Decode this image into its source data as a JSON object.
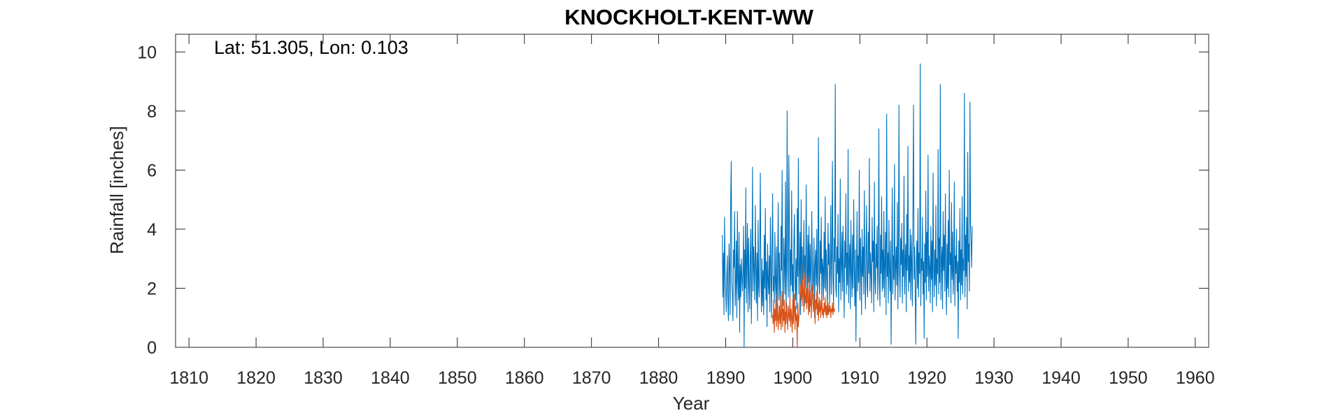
{
  "chart_data": {
    "type": "line",
    "title": "KNOCKHOLT-KENT-WW",
    "xlabel": "Year",
    "ylabel": "Rainfall [inches]",
    "annotation": "Lat: 51.305, Lon: 0.103",
    "xlim": [
      1808,
      1962
    ],
    "ylim": [
      0,
      10.6
    ],
    "xticks": [
      1810,
      1820,
      1830,
      1840,
      1850,
      1860,
      1870,
      1880,
      1890,
      1900,
      1910,
      1920,
      1930,
      1940,
      1950,
      1960
    ],
    "yticks": [
      0,
      2,
      4,
      6,
      8,
      10
    ],
    "grid": false,
    "series": [
      {
        "color": "#0072BD",
        "x_start": 1889.5,
        "step": 0.0833333,
        "values": [
          3.8,
          1.7,
          3.2,
          1.1,
          4.4,
          2.6,
          1.9,
          1.2,
          2.4,
          3.1,
          1.5,
          0.9,
          3.5,
          2.8,
          1.1,
          5.1,
          6.3,
          2.2,
          1.8,
          0.9,
          3.3,
          2.7,
          4.6,
          1.4,
          2.1,
          3.6,
          1.0,
          4.6,
          2.3,
          1.6,
          3.9,
          0.5,
          2.8,
          1.7,
          3.0,
          2.4,
          1.9,
          2.6,
          4.1,
          0.0,
          3.3,
          2.0,
          5.4,
          1.5,
          2.9,
          4.2,
          1.2,
          3.7,
          2.2,
          1.3,
          3.1,
          4.0,
          0.8,
          2.5,
          6.1,
          1.9,
          3.4,
          2.7,
          1.6,
          4.8,
          2.8,
          1.5,
          3.2,
          0.9,
          4.3,
          2.1,
          1.7,
          3.6,
          5.9,
          2.5,
          1.2,
          3.0,
          1.4,
          2.6,
          1.1,
          3.8,
          2.0,
          4.7,
          1.6,
          2.9,
          0.7,
          3.5,
          2.3,
          1.8,
          3.1,
          1.2,
          4.4,
          2.7,
          1.0,
          3.3,
          5.2,
          1.9,
          2.4,
          1.5,
          3.9,
          2.2,
          1.7,
          3.4,
          0.9,
          2.8,
          4.9,
          1.6,
          3.2,
          2.0,
          1.1,
          4.1,
          2.6,
          6.0,
          2.3,
          1.4,
          3.7,
          2.9,
          1.8,
          5.6,
          1.2,
          3.0,
          8.0,
          2.5,
          1.7,
          6.5,
          4.2,
          1.5,
          3.3,
          2.1,
          5.3,
          1.9,
          2.8,
          1.0,
          3.6,
          4.5,
          2.2,
          1.6,
          3.0,
          1.3,
          4.7,
          2.4,
          6.4,
          1.8,
          2.6,
          3.9,
          1.1,
          5.0,
          2.3,
          3.4,
          1.7,
          2.9,
          4.3,
          1.4,
          3.1,
          2.0,
          5.5,
          2.7,
          1.5,
          3.8,
          2.2,
          4.1,
          1.2,
          3.5,
          2.6,
          1.9,
          4.6,
          3.0,
          1.6,
          2.4,
          3.7,
          1.0,
          2.8,
          3.3,
          2.1,
          4.0,
          1.4,
          2.9,
          7.1,
          2.2,
          1.8,
          3.6,
          2.5,
          4.4,
          1.3,
          3.0,
          2.7,
          1.6,
          3.9,
          2.0,
          5.1,
          1.9,
          3.3,
          2.4,
          1.1,
          4.2,
          2.8,
          3.5,
          1.5,
          2.6,
          4.8,
          1.8,
          3.1,
          6.3,
          2.3,
          1.4,
          3.7,
          2.9,
          8.9,
          2.0,
          1.7,
          3.4,
          2.5,
          4.5,
          1.2,
          3.0,
          2.2,
          5.7,
          1.6,
          2.8,
          3.9,
          1.9,
          4.1,
          2.4,
          1.0,
          3.6,
          2.7,
          5.2,
          1.8,
          3.2,
          2.1,
          6.7,
          1.5,
          2.9,
          3.5,
          1.3,
          4.3,
          2.6,
          1.7,
          3.8,
          2.0,
          5.0,
          2.9,
          1.4,
          3.3,
          0.2,
          2.5,
          4.6,
          1.9,
          3.1,
          2.2,
          6.0,
          1.6,
          3.7,
          2.8,
          1.1,
          4.0,
          2.4,
          3.4,
          1.8,
          5.3,
          2.7,
          1.3,
          3.0,
          4.8,
          2.1,
          1.7,
          3.9,
          2.5,
          6.4,
          1.9,
          3.2,
          2.6,
          1.5,
          4.4,
          2.9,
          3.6,
          1.2,
          5.6,
          2.3,
          1.8,
          3.5,
          2.7,
          4.1,
          1.6,
          3.0,
          7.4,
          2.2,
          1.4,
          3.8,
          2.5,
          5.1,
          1.9,
          3.3,
          2.0,
          4.6,
          1.7,
          2.8,
          3.9,
          1.1,
          7.9,
          2.4,
          3.2,
          1.5,
          4.3,
          2.6,
          1.9,
          3.6,
          0.1,
          2.9,
          5.4,
          1.8,
          3.1,
          2.3,
          6.2,
          1.6,
          2.7,
          3.4,
          2.1,
          4.9,
          1.3,
          3.0,
          8.2,
          2.5,
          1.7,
          3.7,
          2.8,
          4.2,
          1.5,
          3.3,
          2.4,
          5.8,
          1.8,
          2.9,
          3.5,
          1.2,
          4.5,
          2.6,
          6.8,
          1.9,
          3.1,
          2.2,
          4.0,
          1.6,
          3.8,
          2.7,
          1.4,
          5.0,
          8.2,
          2.3,
          3.4,
          1.9,
          0.1,
          2.8,
          3.6,
          2.0,
          4.7,
          1.7,
          3.2,
          2.5,
          9.6,
          1.4,
          3.0,
          2.6,
          4.4,
          1.8,
          2.9,
          0.3,
          3.5,
          2.2,
          5.3,
          1.6,
          3.9,
          2.4,
          6.5,
          1.9,
          3.1,
          2.7,
          1.5,
          4.1,
          2.3,
          3.6,
          1.2,
          5.9,
          2.8,
          1.7,
          3.3,
          2.1,
          4.8,
          1.4,
          3.0,
          2.5,
          6.7,
          1.8,
          3.7,
          2.2,
          8.9,
          1.6,
          2.9,
          3.4,
          1.3,
          4.6,
          2.6,
          3.8,
          1.9,
          5.2,
          2.4,
          1.1,
          3.5,
          2.0,
          4.3,
          1.7,
          6.0,
          2.8,
          3.2,
          1.5,
          4.9,
          2.3,
          3.9,
          1.8,
          2.7,
          5.6,
          1.4,
          3.1,
          2.5,
          4.0,
          1.9,
          2.9,
          0.3,
          3.6,
          2.2,
          4.7,
          1.6,
          3.3,
          2.1,
          5.1,
          1.8,
          3.0,
          2.6,
          8.6,
          1.7,
          3.8,
          2.4,
          4.4,
          1.3,
          6.6,
          2.9,
          3.5,
          1.9,
          8.3,
          4.2,
          3.6,
          2.7,
          4.1
        ]
      },
      {
        "color": "#D95319",
        "x_start": 1897.0,
        "step": 0.0833333,
        "values": [
          1.1,
          0.8,
          1.6,
          0.5,
          1.3,
          0.9,
          1.8,
          0.7,
          1.2,
          1.5,
          0.6,
          1.0,
          1.4,
          0.8,
          1.7,
          0.6,
          1.1,
          1.9,
          0.7,
          1.3,
          0.9,
          1.6,
          0.5,
          1.2,
          0.8,
          1.5,
          1.0,
          0.6,
          1.4,
          1.1,
          0.9,
          1.7,
          0.7,
          1.3,
          1.0,
          0.5,
          1.6,
          0.8,
          1.2,
          1.8,
          0.6,
          1.4,
          0.9,
          1.1,
          0.0,
          1.5,
          0.7,
          1.0,
          1.3,
          1.8,
          2.1,
          1.6,
          2.8,
          1.4,
          2.3,
          1.9,
          1.2,
          2.5,
          1.7,
          1.5,
          2.0,
          1.3,
          1.8,
          2.4,
          1.1,
          1.6,
          2.2,
          1.4,
          1.9,
          1.0,
          1.7,
          2.1,
          1.5,
          1.2,
          1.8,
          1.4,
          0.8,
          1.6,
          1.3,
          1.9,
          1.1,
          1.5,
          0.9,
          1.7,
          1.2,
          1.6,
          1.0,
          1.4,
          1.8,
          1.1,
          1.3,
          1.0,
          1.5,
          1.2,
          1.7,
          1.1,
          1.4,
          1.0,
          1.6,
          1.3,
          1.1,
          1.5,
          1.2,
          1.4,
          1.0,
          1.3,
          1.2,
          1.5,
          1.1,
          1.4,
          1.2,
          1.3
        ]
      }
    ]
  }
}
